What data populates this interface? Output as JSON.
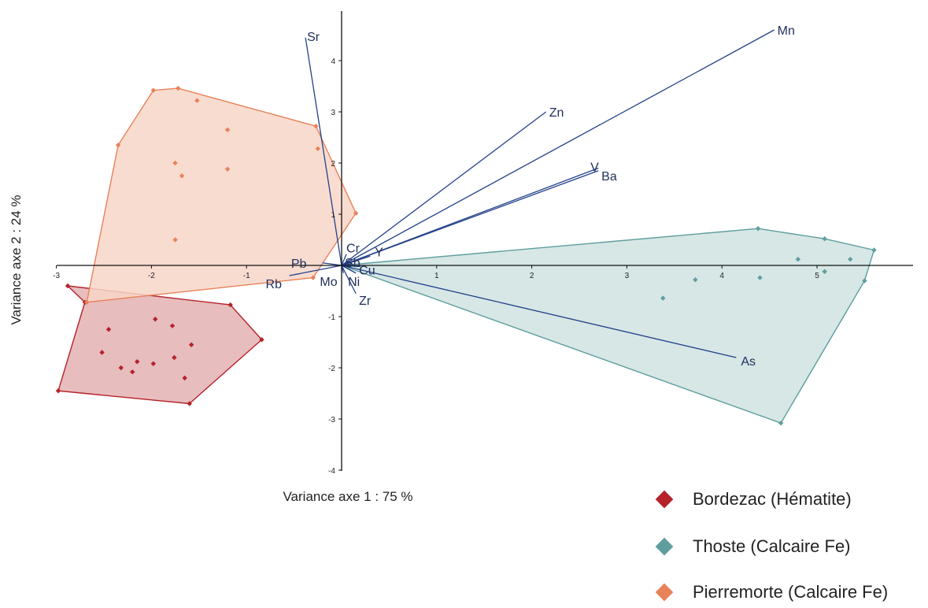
{
  "chart_data": {
    "type": "scatter",
    "xlabel": "Variance axe 1 : 75 %",
    "ylabel": "Variance axe 2 : 24 %",
    "xlim": [
      -3,
      6
    ],
    "ylim": [
      -4,
      5
    ],
    "x_ticks": [
      "-3",
      "-2",
      "-1",
      "1",
      "2",
      "3",
      "4",
      "5"
    ],
    "y_ticks": [
      "-4",
      "-3",
      "-2",
      "-1",
      "1",
      "2",
      "3",
      "4"
    ],
    "series": [
      {
        "name": "Bordezac (Hématite)",
        "color": "#b5222a",
        "fill": "#e3b2b3",
        "points": [
          [
            -2.88,
            -0.4
          ],
          [
            -2.45,
            -1.25
          ],
          [
            -2.52,
            -1.7
          ],
          [
            -2.32,
            -2.0
          ],
          [
            -2.15,
            -1.88
          ],
          [
            -2.2,
            -2.08
          ],
          [
            -1.98,
            -1.92
          ],
          [
            -1.96,
            -1.05
          ],
          [
            -1.78,
            -1.18
          ],
          [
            -1.76,
            -1.8
          ],
          [
            -1.65,
            -2.2
          ],
          [
            -1.58,
            -1.55
          ],
          [
            -1.17,
            -0.77
          ],
          [
            -0.84,
            -1.45
          ],
          [
            -1.6,
            -2.7
          ],
          [
            -2.98,
            -2.45
          ],
          [
            -2.7,
            -0.72
          ]
        ],
        "hull": [
          [
            -2.88,
            -0.4
          ],
          [
            -1.17,
            -0.77
          ],
          [
            -0.84,
            -1.45
          ],
          [
            -1.6,
            -2.7
          ],
          [
            -2.98,
            -2.45
          ],
          [
            -2.7,
            -0.72
          ]
        ]
      },
      {
        "name": "Thoste (Calcaire Fe)",
        "color": "#5e9e9e",
        "fill": "#cfe3e2",
        "points": [
          [
            4.38,
            0.72
          ],
          [
            5.08,
            0.52
          ],
          [
            5.6,
            0.3
          ],
          [
            4.8,
            0.12
          ],
          [
            5.35,
            0.12
          ],
          [
            5.08,
            -0.12
          ],
          [
            4.4,
            -0.24
          ],
          [
            3.72,
            -0.28
          ],
          [
            5.5,
            -0.3
          ],
          [
            3.38,
            -0.64
          ],
          [
            4.62,
            -3.08
          ]
        ],
        "hull": [
          [
            0,
            0
          ],
          [
            4.38,
            0.72
          ],
          [
            5.08,
            0.52
          ],
          [
            5.6,
            0.3
          ],
          [
            5.5,
            -0.3
          ],
          [
            4.62,
            -3.08
          ]
        ]
      },
      {
        "name": "Pierremorte (Calcaire Fe)",
        "color": "#e8825a",
        "fill": "#f8d6c8",
        "points": [
          [
            -2.68,
            -0.72
          ],
          [
            -2.35,
            2.35
          ],
          [
            -1.98,
            3.42
          ],
          [
            -1.72,
            3.46
          ],
          [
            -1.52,
            3.22
          ],
          [
            -1.2,
            2.65
          ],
          [
            -1.75,
            2.0
          ],
          [
            -1.68,
            1.75
          ],
          [
            -1.2,
            1.88
          ],
          [
            -1.75,
            0.5
          ],
          [
            -0.27,
            2.72
          ],
          [
            -0.25,
            2.28
          ],
          [
            0.15,
            1.02
          ],
          [
            -0.3,
            -0.24
          ]
        ],
        "hull": [
          [
            -2.68,
            -0.72
          ],
          [
            -2.35,
            2.35
          ],
          [
            -1.98,
            3.42
          ],
          [
            -1.72,
            3.46
          ],
          [
            -0.27,
            2.72
          ],
          [
            0.15,
            1.02
          ],
          [
            -0.3,
            -0.24
          ]
        ]
      }
    ],
    "vectors": [
      {
        "name": "Sr",
        "x": -0.38,
        "y": 4.45
      },
      {
        "name": "Mn",
        "x": 4.55,
        "y": 4.6
      },
      {
        "name": "Zn",
        "x": 2.15,
        "y": 3.0
      },
      {
        "name": "V",
        "x": 2.7,
        "y": 1.9
      },
      {
        "name": "Ba",
        "x": 2.7,
        "y": 1.85
      },
      {
        "name": "Cr",
        "x": 0.05,
        "y": 0.22
      },
      {
        "name": "Y",
        "x": 0.3,
        "y": 0.18
      },
      {
        "name": "Sb",
        "x": 0.1,
        "y": 0.03
      },
      {
        "name": "Cu",
        "x": 0.2,
        "y": -0.02
      },
      {
        "name": "Pb",
        "x": -0.2,
        "y": 0.05
      },
      {
        "name": "Rb",
        "x": -0.55,
        "y": -0.2
      },
      {
        "name": "Mo",
        "x": 0.02,
        "y": -0.15
      },
      {
        "name": "Ni",
        "x": 0.15,
        "y": -0.15
      },
      {
        "name": "Zr",
        "x": 0.15,
        "y": -0.55
      },
      {
        "name": "As",
        "x": 4.15,
        "y": -1.8
      }
    ]
  }
}
